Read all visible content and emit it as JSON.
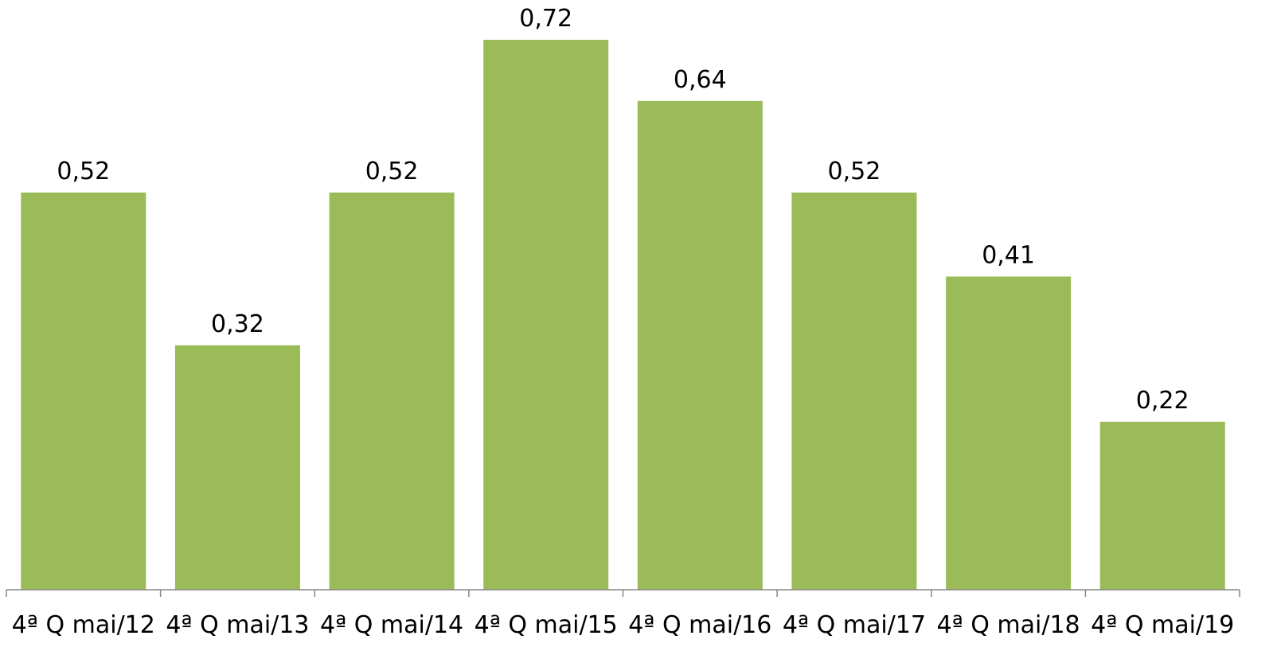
{
  "chart_data": {
    "type": "bar",
    "title": "",
    "xlabel": "",
    "ylabel": "",
    "categories": [
      "4ª Q mai/12",
      "4ª Q mai/13",
      "4ª Q mai/14",
      "4ª Q mai/15",
      "4ª Q mai/16",
      "4ª Q mai/17",
      "4ª Q mai/18",
      "4ª Q mai/19"
    ],
    "values": [
      0.52,
      0.32,
      0.52,
      0.72,
      0.64,
      0.52,
      0.41,
      0.22
    ],
    "value_labels": [
      "0,52",
      "0,32",
      "0,52",
      "0,72",
      "0,64",
      "0,52",
      "0,41",
      "0,22"
    ],
    "ylim": [
      0,
      0.72
    ],
    "grid": false,
    "legend": "none",
    "colors": {
      "bar": "#9BBB59",
      "axis": "#868686",
      "text": "#000000"
    }
  }
}
